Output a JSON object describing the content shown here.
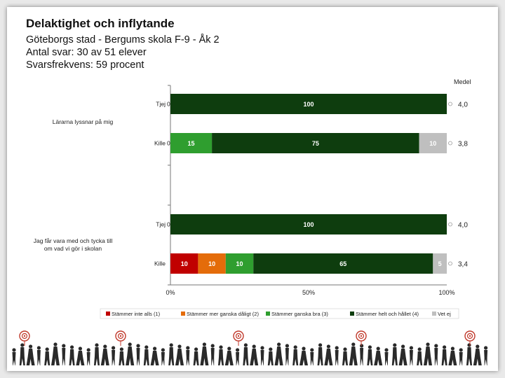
{
  "header": {
    "title": "Delaktighet och inflytande",
    "line1": "Göteborgs stad - Bergums skola F-9 - Åk 2",
    "line2": "Antal svar: 30 av 51 elever",
    "line3": "Svarsfrekvens: 59 procent"
  },
  "chart_data": {
    "type": "bar",
    "orientation": "horizontal-stacked-100",
    "medel_label": "Medel",
    "questions": [
      {
        "label": "Lärarna lyssnar på mig",
        "rows": [
          {
            "label": "Tjej",
            "zero_marker": "0",
            "values": [
              0,
              0,
              0,
              100,
              0
            ],
            "labels": [
              "",
              "",
              "",
              "100",
              ""
            ],
            "mean": "4,0"
          },
          {
            "label": "Kille",
            "zero_marker": "0",
            "values": [
              0,
              0,
              15,
              75,
              10
            ],
            "labels": [
              "",
              "",
              "15",
              "75",
              "10"
            ],
            "mean": "3,8"
          }
        ]
      },
      {
        "label": "Jag får vara med och tycka till om vad vi gör i skolan",
        "rows": [
          {
            "label": "Tjej",
            "zero_marker": "0",
            "values": [
              0,
              0,
              0,
              100,
              0
            ],
            "labels": [
              "",
              "",
              "",
              "100",
              ""
            ],
            "mean": "4,0"
          },
          {
            "label": "Kille",
            "zero_marker": "",
            "values": [
              10,
              10,
              10,
              65,
              5
            ],
            "labels": [
              "10",
              "10",
              "10",
              "65",
              "5"
            ],
            "mean": "3,4"
          }
        ]
      }
    ],
    "x_ticks": [
      "0%",
      "50%",
      "100%"
    ],
    "xlim": [
      0,
      100
    ],
    "series": [
      {
        "name": "Stämmer inte alls (1)",
        "color": "#c00000"
      },
      {
        "name": "Stämmer mer ganska dåligt (2)",
        "color": "#e46c0a"
      },
      {
        "name": "Stämmer ganska bra (3)",
        "color": "#2f9e2f"
      },
      {
        "name": "Stämmer helt och hållet (4)",
        "color": "#0e3d0e"
      },
      {
        "name": "Vet ej",
        "color": "#bfbfbf"
      }
    ]
  }
}
